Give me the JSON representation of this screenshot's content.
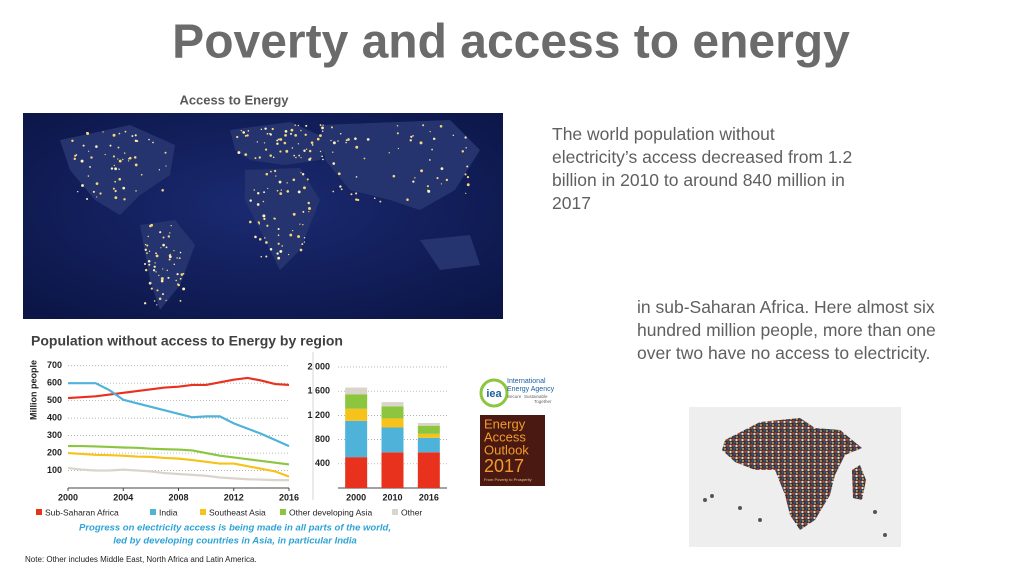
{
  "title": "Poverty and access to energy",
  "map": {
    "caption": "Access to Energy"
  },
  "paragraphs": [
    "The world population without electricity’s access decreased from 1.2 billion in 2010 to around 840 million in 2017",
    "in sub-Saharan Africa. Here almost six hundred million people, more than one over two have no access to electricity."
  ],
  "figure": {
    "title": "Population without access to Energy by region",
    "caption": [
      "Progress on electricity access is being made in all parts of the world,",
      "led by developing countries in Asia, in particular India"
    ],
    "note": "Note: Other includes Middle East, North Africa and Latin America."
  },
  "logo": {
    "mark": "iea",
    "lines": [
      "International",
      "Energy Agency"
    ],
    "motto": [
      "Secure",
      "Sustainable",
      "Together"
    ]
  },
  "report": {
    "lines": [
      "Energy",
      "Access",
      "Outlook",
      "2017"
    ],
    "tagline": "From Poverty to Prosperity"
  },
  "chart_data": [
    {
      "type": "line",
      "y_label": "Million people",
      "x": [
        2000,
        2001,
        2002,
        2003,
        2004,
        2005,
        2006,
        2007,
        2008,
        2009,
        2010,
        2011,
        2012,
        2013,
        2014,
        2015,
        2016
      ],
      "xlim": [
        2000,
        2016
      ],
      "xticks": [
        2000,
        2004,
        2008,
        2012,
        2016
      ],
      "ylim": [
        0,
        750
      ],
      "yticks": [
        100,
        200,
        300,
        400,
        500,
        600,
        700
      ],
      "grid": true,
      "series": [
        {
          "name": "Sub-Saharan Africa",
          "color": "#e8321e",
          "values": [
            515,
            520,
            525,
            535,
            545,
            555,
            565,
            575,
            580,
            590,
            590,
            605,
            620,
            630,
            615,
            595,
            590
          ]
        },
        {
          "name": "India",
          "color": "#4fb3d9",
          "values": [
            600,
            600,
            600,
            560,
            505,
            485,
            465,
            445,
            425,
            405,
            410,
            410,
            370,
            340,
            310,
            275,
            240
          ]
        },
        {
          "name": "Southeast Asia",
          "color": "#f7c21a",
          "values": [
            200,
            195,
            190,
            188,
            185,
            180,
            178,
            172,
            168,
            160,
            150,
            140,
            140,
            125,
            110,
            95,
            65
          ]
        },
        {
          "name": "Other developing Asia",
          "color": "#8cc63f",
          "values": [
            240,
            240,
            238,
            235,
            232,
            230,
            225,
            222,
            220,
            215,
            200,
            185,
            175,
            165,
            155,
            145,
            135
          ]
        },
        {
          "name": "Other",
          "color": "#d9d4cc",
          "values": [
            115,
            105,
            100,
            100,
            105,
            100,
            95,
            85,
            80,
            75,
            70,
            60,
            55,
            50,
            48,
            45,
            45
          ]
        }
      ]
    },
    {
      "type": "stacked-bar",
      "categories": [
        "2000",
        "2010",
        "2016"
      ],
      "ylim": [
        0,
        2000
      ],
      "yticks": [
        400,
        800,
        {
          "value": 1200,
          "label": "1 200"
        },
        {
          "value": 1600,
          "label": "1 600"
        },
        {
          "value": 2000,
          "label": "2 000"
        }
      ],
      "grid": true,
      "series": [
        {
          "color": "#e8321e",
          "values": [
            510,
            590,
            590
          ]
        },
        {
          "color": "#4fb3d9",
          "values": [
            600,
            410,
            240
          ]
        },
        {
          "color": "#f7c21a",
          "values": [
            200,
            150,
            65
          ]
        },
        {
          "color": "#8cc63f",
          "values": [
            240,
            200,
            135
          ]
        },
        {
          "color": "#d9d4cc",
          "values": [
            110,
            70,
            45
          ]
        }
      ]
    }
  ]
}
